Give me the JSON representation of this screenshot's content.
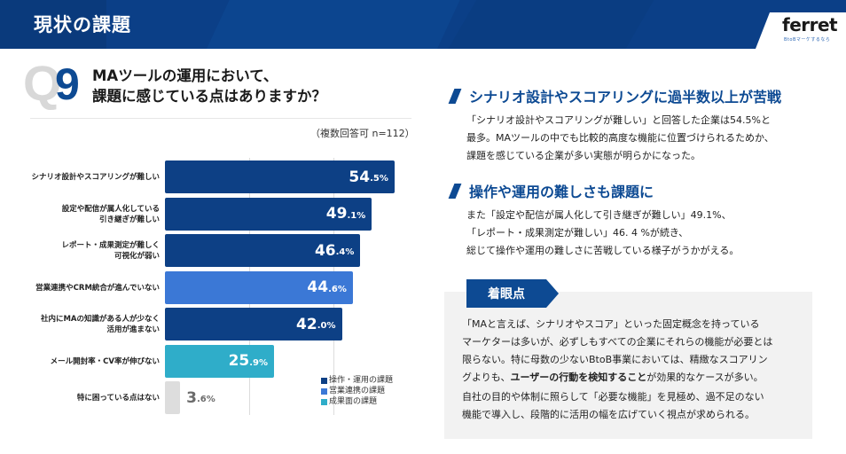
{
  "header": {
    "title": "現状の課題",
    "logo": "ferret",
    "logo_tagline": "BtoBマーケするなら"
  },
  "question": {
    "q_letter": "Q",
    "q_number": "9",
    "line1": "MAツールの運用において、",
    "line2": "課題に感じている点はありますか？",
    "note": "（複数回答可 n=112）"
  },
  "colors": {
    "operation": "#0d4085",
    "sales": "#3b78d6",
    "results": "#2fadc9",
    "none": "#dddddd",
    "accent": "#0d4a93"
  },
  "chart_data": {
    "type": "bar",
    "orientation": "horizontal",
    "title": "MAツールの運用において、課題に感じている点はありますか？",
    "unit": "%",
    "xlim": [
      0,
      60
    ],
    "grid": true,
    "gridlines": [
      20,
      40
    ],
    "categories": [
      [
        "シナリオ設計やスコアリングが難しい"
      ],
      [
        "設定や配信が属人化している",
        "引き継ぎが難しい"
      ],
      [
        "レポート・成果測定が難しく",
        "可視化が弱い"
      ],
      [
        "営業連携やCRM統合が進んでいない"
      ],
      [
        "社内にMAの知識がある人が少なく",
        "活用が進まない"
      ],
      [
        "メール開封率・CV率が伸びない"
      ],
      [
        "特に困っている点はない"
      ]
    ],
    "values": [
      54.5,
      49.1,
      46.4,
      44.6,
      42.0,
      25.9,
      3.6
    ],
    "value_labels": [
      {
        "int": "54",
        "dec": ".5%"
      },
      {
        "int": "49",
        "dec": ".1%"
      },
      {
        "int": "46",
        "dec": ".4%"
      },
      {
        "int": "44",
        "dec": ".6%"
      },
      {
        "int": "42",
        "dec": ".0%"
      },
      {
        "int": "25",
        "dec": ".9%"
      },
      {
        "int": "3",
        "dec": ".6%"
      }
    ],
    "groups": [
      "operation",
      "operation",
      "operation",
      "sales",
      "operation",
      "results",
      "none"
    ],
    "legend": [
      {
        "key": "operation",
        "label": "■操作・運用の課題"
      },
      {
        "key": "sales",
        "label": "■営業連携の課題"
      },
      {
        "key": "results",
        "label": "■成果面の課題"
      }
    ],
    "legend_position": "bottom-right"
  },
  "sections": [
    {
      "title": "シナリオ設計やスコアリングに過半数以上が苦戦",
      "lines": [
        "「シナリオ設計やスコアリングが難しい」と回答した企業は54.5%と",
        "最多。MAツールの中でも比較的高度な機能に位置づけられるためか、",
        "課題を感じている企業が多い実態が明らかになった。"
      ]
    },
    {
      "title": "操作や運用の難しさも課題に",
      "lines": [
        "また「設定や配信が属人化して引き継ぎが難しい」49.1%、",
        "「レポート・成果測定が難しい」46. 4 %が続き、",
        "総じて操作や運用の難しさに苦戦している様子がうかがえる。"
      ]
    }
  ],
  "note": {
    "label": "着眼点",
    "p1_a": "「MAと言えば、シナリオやスコア」といった固定概念を持っている",
    "p1_b": "マーケターは多いが、必ずしもすべての企業にそれらの機能が必要とは",
    "p1_c": "限らない。特に母数の少ないBtoB事業においては、精緻なスコアリン",
    "p1_d_pre": "グよりも、",
    "p1_d_bold": "ユーザーの行動を検知すること",
    "p1_d_post": "が効果的なケースが多い。",
    "p2_a": "自社の目的や体制に照らして「必要な機能」を見極め、過不足のない",
    "p2_b": "機能で導入し、段階的に活用の幅を広げていく視点が求められる。"
  }
}
